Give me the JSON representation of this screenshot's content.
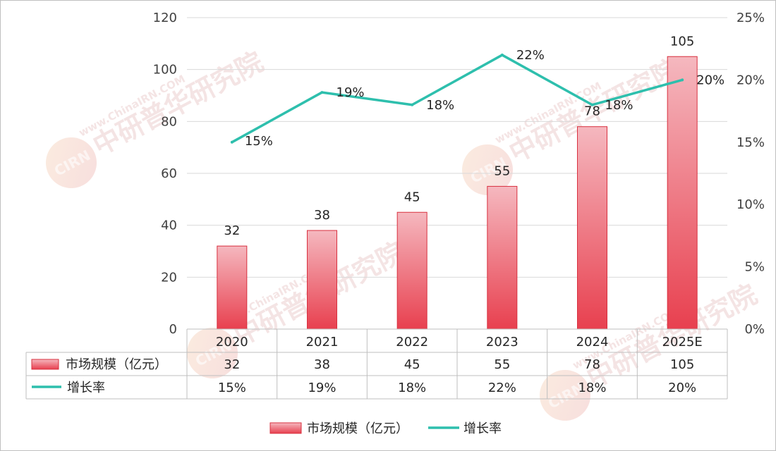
{
  "chart_data": {
    "type": "bar",
    "categories": [
      "2020",
      "2021",
      "2022",
      "2023",
      "2024",
      "2025E"
    ],
    "series": [
      {
        "name": "市场规模（亿元）",
        "type": "bar",
        "axis": "left",
        "values": [
          32,
          38,
          45,
          55,
          78,
          105
        ],
        "labels": [
          "32",
          "38",
          "45",
          "55",
          "78",
          "105"
        ],
        "color": "#e8485a"
      },
      {
        "name": "增长率",
        "type": "line",
        "axis": "right",
        "values": [
          0.15,
          0.19,
          0.18,
          0.22,
          0.18,
          0.2
        ],
        "labels": [
          "15%",
          "19%",
          "18%",
          "22%",
          "18%",
          "20%"
        ],
        "color": "#2ebfad"
      }
    ],
    "y_left": {
      "min": 0,
      "max": 120,
      "ticks": [
        "0",
        "20",
        "40",
        "60",
        "80",
        "100",
        "120"
      ]
    },
    "y_right": {
      "min": 0,
      "max": 0.25,
      "ticks": [
        "0%",
        "5%",
        "10%",
        "15%",
        "20%",
        "25%"
      ]
    },
    "grid": true,
    "data_table": true,
    "legend_position": "bottom"
  },
  "watermark": {
    "brand": "CIRN",
    "url": "www.ChinaIRN.COM",
    "name": "中研普华研究院"
  }
}
